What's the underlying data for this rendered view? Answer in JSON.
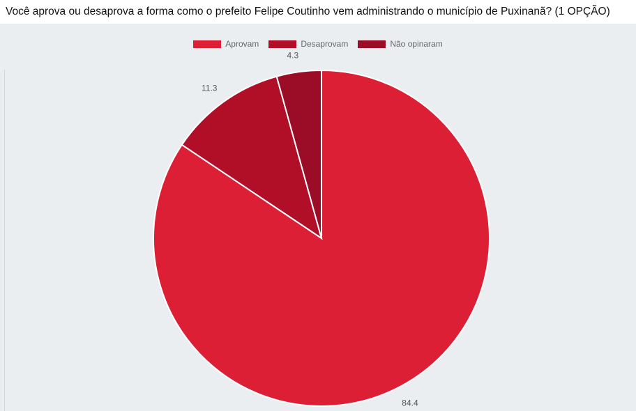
{
  "chart_data": {
    "type": "pie",
    "title": "Você aprova ou desaprova a forma como o prefeito Felipe Coutinho vem administrando o município de Puxinanã? (1 OPÇÃO)",
    "categories": [
      "Aprovam",
      "Desaprovam",
      "Não opinaram"
    ],
    "values": [
      84.4,
      11.3,
      4.3
    ],
    "value_labels": [
      "84.4",
      "11.3",
      "4.3"
    ],
    "colors": [
      "#dc1f35",
      "#b10f27",
      "#9b0d26"
    ],
    "legend_position": "top"
  }
}
